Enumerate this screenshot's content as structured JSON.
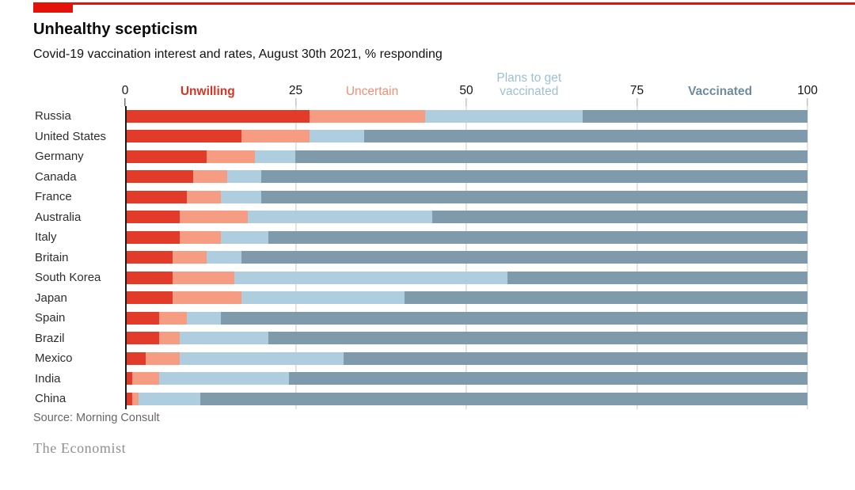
{
  "header": {
    "title": "Unhealthy scepticism",
    "subtitle": "Covid-19 vaccination interest and rates, August 30th 2021, % responding"
  },
  "footer": {
    "source": "Source: Morning Consult",
    "logo": "The Economist"
  },
  "colors": {
    "brand_red": "#e3120b",
    "unwilling": "#e23b2a",
    "uncertain": "#f69c83",
    "plans": "#aecdde",
    "vaccinated": "#7f9aab",
    "gridline": "#c9c9c9",
    "axis_line": "#1a1a1a"
  },
  "chart_data": {
    "type": "bar",
    "variant": "stacked-horizontal",
    "title": "Unhealthy scepticism",
    "subtitle": "Covid-19 vaccination interest and rates, August 30th 2021, % responding",
    "unit": "% responding",
    "xlim": [
      0,
      100
    ],
    "x_ticks": [
      0,
      25,
      50,
      75,
      100
    ],
    "grid": "vertical",
    "legend_position": "top-interleaved-with-ticks",
    "categories": [
      "Russia",
      "United States",
      "Germany",
      "Canada",
      "France",
      "Australia",
      "Italy",
      "Britain",
      "South Korea",
      "Japan",
      "Spain",
      "Brazil",
      "Mexico",
      "India",
      "China"
    ],
    "series": [
      {
        "name": "Unwilling",
        "color": "#e23b2a",
        "values": [
          27,
          17,
          12,
          10,
          9,
          8,
          8,
          7,
          7,
          7,
          5,
          5,
          3,
          1,
          1
        ]
      },
      {
        "name": "Uncertain",
        "color": "#f69c83",
        "values": [
          17,
          10,
          7,
          5,
          5,
          10,
          6,
          5,
          9,
          10,
          4,
          3,
          5,
          4,
          1
        ]
      },
      {
        "name": "Plans to get vaccinated",
        "color": "#aecdde",
        "values": [
          23,
          8,
          6,
          5,
          6,
          27,
          7,
          5,
          40,
          24,
          5,
          13,
          24,
          19,
          9
        ]
      },
      {
        "name": "Vaccinated",
        "color": "#7f9aab",
        "values": [
          33,
          65,
          75,
          80,
          80,
          55,
          79,
          83,
          44,
          59,
          86,
          79,
          68,
          76,
          89
        ]
      }
    ],
    "legend": [
      {
        "label": "Unwilling",
        "x_pct": 12.1,
        "color": "#d63425"
      },
      {
        "label": "Uncertain",
        "x_pct": 36.2,
        "color": "#f28f73"
      },
      {
        "label": "Plans to get vaccinated",
        "lines": [
          "Plans to get",
          "vaccinated"
        ],
        "x_pct": 59.2,
        "color": "#9dbfd3"
      },
      {
        "label": "Vaccinated",
        "x_pct": 87.2,
        "color": "#6d8c9d"
      }
    ],
    "source": "Source: Morning Consult"
  }
}
